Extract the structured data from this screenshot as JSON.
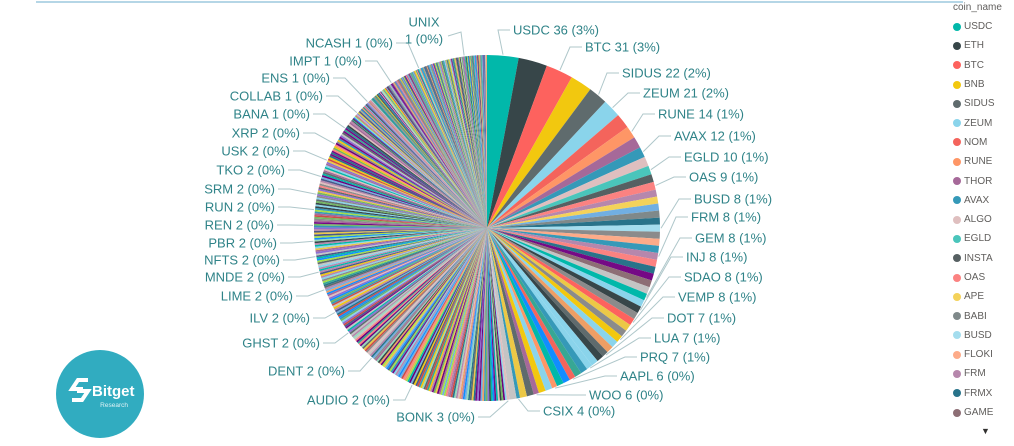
{
  "page": {
    "background": "#FFFFFF",
    "top_line_color": "#B5D6E6"
  },
  "logo": {
    "brand": "Bitget",
    "subtitle": "Research",
    "circle_color": "#31ACC0",
    "text_color": "#FFFFFF"
  },
  "legend": {
    "title": "coin_name",
    "text_color": "#605E5C",
    "scroll_arrow": "▼",
    "items": [
      {
        "label": "USDC",
        "color": "#01B8AA"
      },
      {
        "label": "ETH",
        "color": "#374649"
      },
      {
        "label": "BTC",
        "color": "#FD625E"
      },
      {
        "label": "BNB",
        "color": "#F2C80F"
      },
      {
        "label": "SIDUS",
        "color": "#5F6B6D"
      },
      {
        "label": "ZEUM",
        "color": "#8AD4EB"
      },
      {
        "label": "NOM",
        "color": "#F4645C"
      },
      {
        "label": "RUNE",
        "color": "#FE9666"
      },
      {
        "label": "THOR",
        "color": "#A66999"
      },
      {
        "label": "AVAX",
        "color": "#3599B8"
      },
      {
        "label": "ALGO",
        "color": "#DFBFBF"
      },
      {
        "label": "EGLD",
        "color": "#4AC5BB"
      },
      {
        "label": "INSTA",
        "color": "#566062"
      },
      {
        "label": "OAS",
        "color": "#FB8281"
      },
      {
        "label": "APE",
        "color": "#F4D25A"
      },
      {
        "label": "BABI",
        "color": "#7F898A"
      },
      {
        "label": "BUSD",
        "color": "#A4DDEE"
      },
      {
        "label": "FLOKI",
        "color": "#FDAB89"
      },
      {
        "label": "FRM",
        "color": "#B687AC"
      },
      {
        "label": "FRMX",
        "color": "#28738A"
      },
      {
        "label": "GAME",
        "color": "#8D6E75"
      }
    ]
  },
  "chart_data": {
    "type": "pie",
    "legend_title": "coin_name",
    "legend_position": "right",
    "estimated_total": 1219,
    "label_color": "#2F8388",
    "leader_color": "#AFC7CA",
    "palette": [
      "#01B8AA",
      "#374649",
      "#FD625E",
      "#F2C80F",
      "#5F6B6D",
      "#8AD4EB",
      "#F4645C",
      "#FE9666",
      "#A66999",
      "#3599B8",
      "#DFBFBF",
      "#4AC5BB",
      "#566062",
      "#FB8281",
      "#F4D25A",
      "#7F898A",
      "#A4DDEE",
      "#FDAB89",
      "#B687AC",
      "#28738A",
      "#8D6E75"
    ],
    "slices": [
      {
        "name": "USDC",
        "value": 36,
        "pct": "3%",
        "labeled": true
      },
      {
        "name": "ETH",
        "value": 33,
        "labeled": false,
        "estimated": true
      },
      {
        "name": "BTC",
        "value": 31,
        "pct": "3%",
        "labeled": true
      },
      {
        "name": "BNB",
        "value": 25,
        "labeled": false,
        "estimated": true
      },
      {
        "name": "SIDUS",
        "value": 22,
        "pct": "2%",
        "labeled": true
      },
      {
        "name": "ZEUM",
        "value": 21,
        "pct": "2%",
        "labeled": true
      },
      {
        "name": "NOM",
        "value": 17,
        "labeled": false,
        "estimated": true
      },
      {
        "name": "RUNE",
        "value": 14,
        "pct": "1%",
        "labeled": true
      },
      {
        "name": "THOR",
        "value": 13,
        "labeled": false,
        "estimated": true
      },
      {
        "name": "AVAX",
        "value": 12,
        "pct": "1%",
        "labeled": true
      },
      {
        "name": "ALGO",
        "value": 11,
        "labeled": false,
        "estimated": true
      },
      {
        "name": "EGLD",
        "value": 10,
        "pct": "1%",
        "labeled": true
      },
      {
        "name": "INSTA",
        "value": 9,
        "labeled": false,
        "estimated": true
      },
      {
        "name": "OAS",
        "value": 9,
        "pct": "1%",
        "labeled": true
      },
      {
        "name": "APE",
        "value": 8,
        "labeled": false,
        "estimated": true
      },
      {
        "name": "BABI",
        "value": 8,
        "labeled": false,
        "estimated": true
      },
      {
        "name": "BUSD",
        "value": 8,
        "pct": "1%",
        "labeled": true
      },
      {
        "name": "FLOKI",
        "value": 8,
        "labeled": false,
        "estimated": true
      },
      {
        "name": "FRM",
        "value": 8,
        "pct": "1%",
        "labeled": true
      },
      {
        "name": "FRMX",
        "value": 8,
        "labeled": false,
        "estimated": true
      },
      {
        "name": "GAME",
        "value": 8,
        "labeled": false,
        "estimated": true
      },
      {
        "name": "GEM",
        "value": 8,
        "pct": "1%",
        "labeled": true
      },
      {
        "name": "INJ",
        "value": 8,
        "pct": "1%",
        "labeled": true
      },
      {
        "name": "SDAO",
        "value": 8,
        "pct": "1%",
        "labeled": true
      },
      {
        "name": "VEMP",
        "value": 8,
        "pct": "1%",
        "labeled": true
      },
      {
        "name": "DOT",
        "value": 7,
        "pct": "1%",
        "labeled": true
      },
      {
        "name": "LUA",
        "value": 7,
        "pct": "1%",
        "labeled": true
      },
      {
        "name": "PRQ",
        "value": 7,
        "pct": "1%",
        "labeled": true
      },
      {
        "name": "AAPL",
        "value": 6,
        "pct": "0%",
        "labeled": true
      },
      {
        "name": "WOO",
        "value": 6,
        "pct": "0%",
        "labeled": true
      },
      {
        "name": "CSIX",
        "value": 4,
        "pct": "0%",
        "labeled": true
      },
      {
        "name": "BONK",
        "value": 3,
        "pct": "0%",
        "labeled": true
      }
    ],
    "small_labeled_slices": [
      {
        "name": "AUDIO",
        "value": 2,
        "pct": "0%"
      },
      {
        "name": "DENT",
        "value": 2,
        "pct": "0%"
      },
      {
        "name": "GHST",
        "value": 2,
        "pct": "0%"
      },
      {
        "name": "ILV",
        "value": 2,
        "pct": "0%"
      },
      {
        "name": "LIME",
        "value": 2,
        "pct": "0%"
      },
      {
        "name": "MNDE",
        "value": 2,
        "pct": "0%"
      },
      {
        "name": "NFTS",
        "value": 2,
        "pct": "0%"
      },
      {
        "name": "PBR",
        "value": 2,
        "pct": "0%"
      },
      {
        "name": "REN",
        "value": 2,
        "pct": "0%"
      },
      {
        "name": "RUN",
        "value": 2,
        "pct": "0%"
      },
      {
        "name": "SRM",
        "value": 2,
        "pct": "0%"
      },
      {
        "name": "TKO",
        "value": 2,
        "pct": "0%"
      },
      {
        "name": "USK",
        "value": 2,
        "pct": "0%"
      },
      {
        "name": "XRP",
        "value": 2,
        "pct": "0%"
      },
      {
        "name": "BANA",
        "value": 1,
        "pct": "0%"
      },
      {
        "name": "COLLAB",
        "value": 1,
        "pct": "0%"
      },
      {
        "name": "ENS",
        "value": 1,
        "pct": "0%"
      },
      {
        "name": "IMPT",
        "value": 1,
        "pct": "0%"
      },
      {
        "name": "NCASH",
        "value": 1,
        "pct": "0%"
      },
      {
        "name": "UNIX",
        "value": 1,
        "pct": "0%"
      }
    ],
    "unlabeled_estimate": {
      "hidden_value": 8,
      "inserts_after": {
        "OAS": 1,
        "APE": 1,
        "BABI": 1,
        "BUSD": 1,
        "FLOKI": 1,
        "FRM": 1,
        "FRMX": 1,
        "GAME": 1,
        "GEM": 1,
        "INJ": 1,
        "SDAO": 2,
        "VEMP": 2,
        "DOT": 2,
        "LUA": 2,
        "PRQ": 2,
        "AAPL": 2,
        "WOO": 2,
        "CSIX": 1
      },
      "two_value_count": 230,
      "one_value_count": 176
    },
    "filler_palette": [
      "#374649",
      "#8AD4EB",
      "#A66999",
      "#73B761",
      "#4A588A",
      "#ECC846",
      "#CD4C46",
      "#71AFE2",
      "#8D6FD1",
      "#EE9E64",
      "#95DABB",
      "#A3E048",
      "#5F6B6D",
      "#FB8281",
      "#28738A",
      "#B687AC",
      "#F2C80F",
      "#3599B8",
      "#DFBFBF",
      "#01B8AA",
      "#6B007B",
      "#118DFF",
      "#750985",
      "#C4C4C4",
      "#37A794",
      "#8B8B8B"
    ]
  }
}
